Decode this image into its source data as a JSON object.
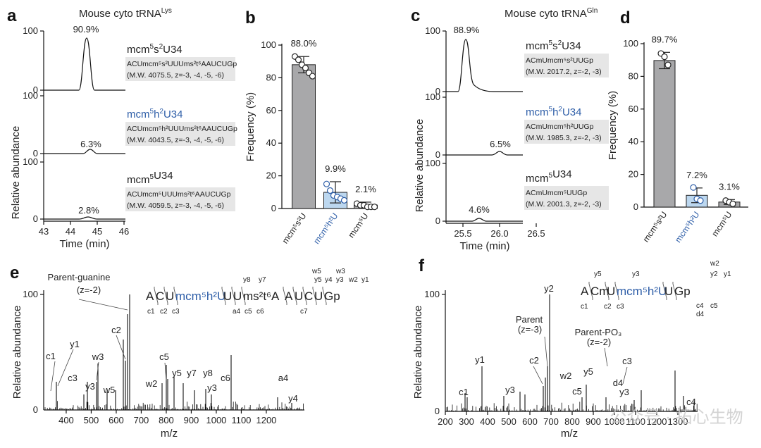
{
  "panel_labels": {
    "a": "a",
    "b": "b",
    "c": "c",
    "d": "d",
    "e": "e",
    "f": "f"
  },
  "colors": {
    "blue": "#2e5ea8",
    "gray_bar": "#a8a8aa",
    "blue_bar": "#bcd7ef",
    "box": "#e6e6e6"
  },
  "panel_a": {
    "title_main": "Mouse cyto tRNA",
    "title_sup": "Lys",
    "ylabel": "Relative abundance",
    "xlabel": "Time (min)",
    "xticks": [
      "43",
      "44",
      "45",
      "46"
    ],
    "y_hi": "100",
    "y_lo": "0",
    "traces": [
      {
        "name_base": "mcm",
        "name_s1": "5",
        "name_mid": "s",
        "name_s2": "2",
        "name_end": "U34",
        "seq_line": "ACUmcm⁵s²UUUms²t⁶AAUCUGp",
        "mw_line": "(M.W. 4075.5, z=-3, -4, -5, -6)",
        "peak": "90.9%"
      },
      {
        "name_base": "mcm",
        "name_s1": "5",
        "name_mid": "h",
        "name_s2": "2",
        "name_end": "U34",
        "seq_line": "ACUmcm⁵h²UUUms²t⁶AAUCUGp",
        "mw_line": "(M.W. 4043.5, z=-3, -4, -5, -6)",
        "peak": "6.3%"
      },
      {
        "name_base": "mcm",
        "name_s1": "5",
        "name_mid": "",
        "name_s2": "",
        "name_end": "U34",
        "seq_line": "ACUmcm⁵UUUms²t⁶AAUCUGp",
        "mw_line": "(M.W. 4059.5, z=-3, -4, -5, -6)",
        "peak": "2.8%"
      }
    ]
  },
  "panel_c": {
    "title_main": "Mouse cyto tRNA",
    "title_sup": "Gln",
    "ylabel": "Relative abundance",
    "xlabel": "Time (min)",
    "xticks": [
      "25.5",
      "26.0",
      "26.5"
    ],
    "y_hi": "100",
    "y_lo": "0",
    "traces": [
      {
        "name_base": "mcm",
        "name_s1": "5",
        "name_mid": "s",
        "name_s2": "2",
        "name_end": "U34",
        "seq_line": "ACmUmcm⁵s²UUGp",
        "mw_line": "(M.W. 2017.2, z=-2, -3)",
        "peak": "88.9%"
      },
      {
        "name_base": "mcm",
        "name_s1": "5",
        "name_mid": "h",
        "name_s2": "2",
        "name_end": "U34",
        "seq_line": "ACmUmcm⁵h²UUGp",
        "mw_line": "(M.W. 1985.3, z=-2, -3)",
        "peak": "6.5%"
      },
      {
        "name_base": "mcm",
        "name_s1": "5",
        "name_mid": "",
        "name_s2": "",
        "name_end": "U34",
        "seq_line": "ACmUmcm⁵UUGp",
        "mw_line": "(M.W. 2001.3, z=-2, -3)",
        "peak": "4.6%"
      }
    ]
  },
  "chart_data": [
    {
      "panel": "b",
      "type": "bar",
      "ylabel": "Frequency (%)",
      "ylim": [
        0,
        100
      ],
      "yticks": [
        "0",
        "20",
        "40",
        "60",
        "80",
        "100"
      ],
      "categories": [
        "mcm⁵s²U",
        "mcm⁵h²U",
        "mcm⁵U"
      ],
      "values": [
        88.0,
        9.9,
        2.1
      ],
      "value_labels": [
        "88.0%",
        "9.9%",
        "2.1%"
      ],
      "errors": [
        5.0,
        6.5,
        1.8
      ],
      "points": [
        [
          93,
          91,
          88,
          86,
          83,
          81
        ],
        [
          15,
          11,
          8,
          7,
          6,
          5
        ],
        [
          3,
          2,
          2,
          1,
          1,
          1
        ]
      ]
    },
    {
      "panel": "d",
      "type": "bar",
      "ylabel": "Frequency (%)",
      "ylim": [
        0,
        100
      ],
      "yticks": [
        "0",
        "20",
        "40",
        "60",
        "80",
        "100"
      ],
      "categories": [
        "mcm⁵s²U",
        "mcm⁵h²U",
        "mcm⁵U"
      ],
      "values": [
        89.7,
        7.2,
        3.1
      ],
      "value_labels": [
        "89.7%",
        "7.2%",
        "3.1%"
      ],
      "errors": [
        5.0,
        4.5,
        1.5
      ],
      "points": [
        [
          94,
          92,
          87
        ],
        [
          12,
          5,
          4
        ],
        [
          4,
          3,
          2
        ]
      ]
    }
  ],
  "panel_e": {
    "ylabel": "Relative abundance",
    "xlabel": "m/z",
    "y_hi": "100",
    "y_lo": "0",
    "xticks": [
      "400",
      "500",
      "600",
      "700",
      "800",
      "900",
      "1000",
      "1100",
      "1200"
    ],
    "annotations": {
      "parent": "Parent-guanine",
      "parent_z": "(z=-2)",
      "c1": "c1",
      "y1": "y1",
      "c2": "c2",
      "w3": "w3",
      "c3": "c3",
      "y3": "y3",
      "w5": "w5",
      "c5": "c5",
      "y5": "y5",
      "w2": "w2",
      "y7": "y7",
      "y8": "y8",
      "y3b": "y3",
      "c6": "c6",
      "a4": "a4",
      "y4": "y4"
    },
    "sequence": [
      "A",
      "C",
      "U",
      "mcm⁵h²U",
      "U",
      "U",
      "ms²t⁶A",
      "A",
      "U",
      "C",
      "U",
      "Gp"
    ],
    "top_ions": [
      "y8",
      "y7",
      "w5",
      "w3",
      "y5",
      "y4",
      "y3",
      "w2",
      "y1"
    ],
    "bottom_ions": [
      "c1",
      "c2",
      "c3",
      "a4",
      "c5",
      "c6",
      "c7"
    ]
  },
  "panel_f": {
    "ylabel": "Relative abundance",
    "xlabel": "m/z",
    "y_hi": "100",
    "y_lo": "0",
    "xticks": [
      "200",
      "300",
      "400",
      "500",
      "600",
      "700",
      "800",
      "900",
      "1000",
      "1100",
      "1200",
      "1300"
    ],
    "annotations": {
      "y2": "y2",
      "parent": "Parent",
      "parent_z": "(z=-3)",
      "parent_po3": "Parent-PO₃",
      "po3_z": "(z=-2)",
      "y1": "y1",
      "c2": "c2",
      "w2": "w2",
      "y5": "y5",
      "c3": "c3",
      "c5": "c5",
      "d4": "d4",
      "y3": "y3",
      "y3b": "y3",
      "c1": "c1",
      "c4": "c4"
    },
    "sequence": [
      "A",
      "Cm",
      "U",
      "mcm⁵h²U",
      "U",
      "Gp"
    ],
    "top_ions": [
      "y5",
      "y3",
      "w2",
      "y2",
      "y1"
    ],
    "bottom_ions": [
      "c1",
      "c2",
      "c3",
      "c4",
      "d4",
      "c5"
    ]
  },
  "watermark": "公众号 · 拓心生物"
}
